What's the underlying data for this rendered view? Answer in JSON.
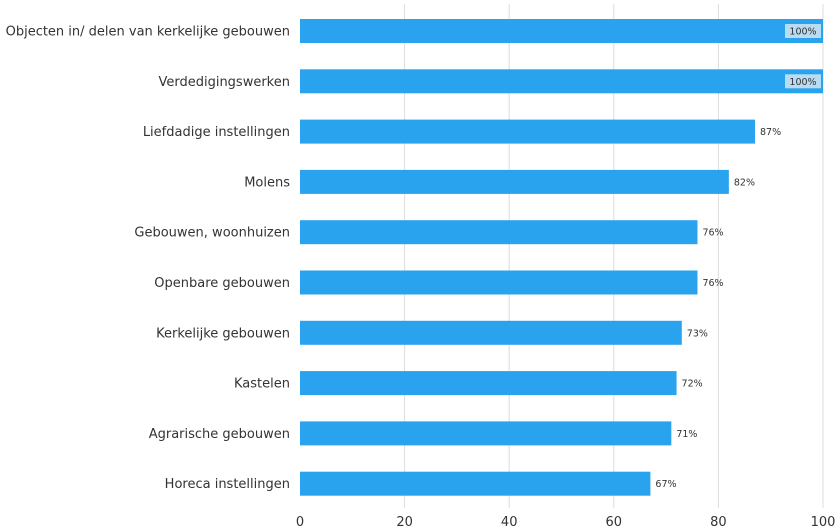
{
  "chart_data": {
    "type": "bar",
    "orientation": "horizontal",
    "categories": [
      "Objecten in/ delen van kerkelijke gebouwen",
      "Verdedigingswerken",
      "Liefdadige instellingen",
      "Molens",
      "Gebouwen, woonhuizen",
      "Openbare gebouwen",
      "Kerkelijke gebouwen",
      "Kastelen",
      "Agrarische gebouwen",
      "Horeca instellingen"
    ],
    "values": [
      100,
      100,
      87,
      82,
      76,
      76,
      73,
      72,
      71,
      67
    ],
    "data_labels": [
      "100%",
      "100%",
      "87%",
      "82%",
      "76%",
      "76%",
      "73%",
      "72%",
      "71%",
      "67%"
    ],
    "xlim": [
      0,
      100
    ],
    "xticks": [
      0,
      20,
      40,
      60,
      80,
      100
    ],
    "xtick_labels": [
      "0",
      "20",
      "40",
      "60",
      "80",
      "100"
    ],
    "grid": true,
    "bar_color": "#2aa3ef",
    "inside_label_bg": "#b9dcf3"
  }
}
